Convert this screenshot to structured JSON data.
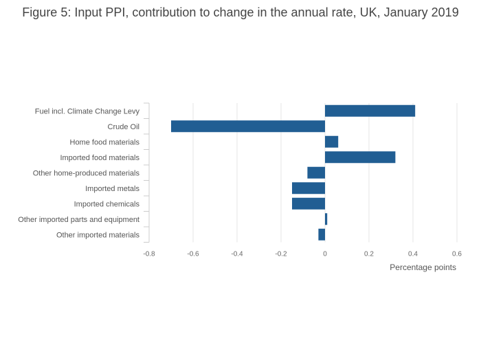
{
  "chart_data": {
    "type": "bar",
    "orientation": "horizontal",
    "title": "Figure 5: Input PPI, contribution to change in the annual rate, UK, January 2019",
    "xlabel": "Percentage points",
    "ylabel": "",
    "xlim": [
      -0.8,
      0.6
    ],
    "xticks": [
      -0.8,
      -0.6,
      -0.4,
      -0.2,
      0,
      0.2,
      0.4,
      0.6
    ],
    "xtick_labels": [
      "-0.8",
      "-0.6",
      "-0.4",
      "-0.2",
      "0",
      "0.2",
      "0.4",
      "0.6"
    ],
    "grid": true,
    "legend": "none",
    "color": "#215e93",
    "categories": [
      "Fuel incl. Climate Change Levy",
      "Crude Oil",
      "Home food materials",
      "Imported food materials",
      "Other home-produced materials",
      "Imported metals",
      "Imported chemicals",
      "Other imported parts and equipment",
      "Other imported materials"
    ],
    "values": [
      0.41,
      -0.7,
      0.06,
      0.32,
      -0.08,
      -0.15,
      -0.15,
      0.01,
      -0.03
    ]
  }
}
